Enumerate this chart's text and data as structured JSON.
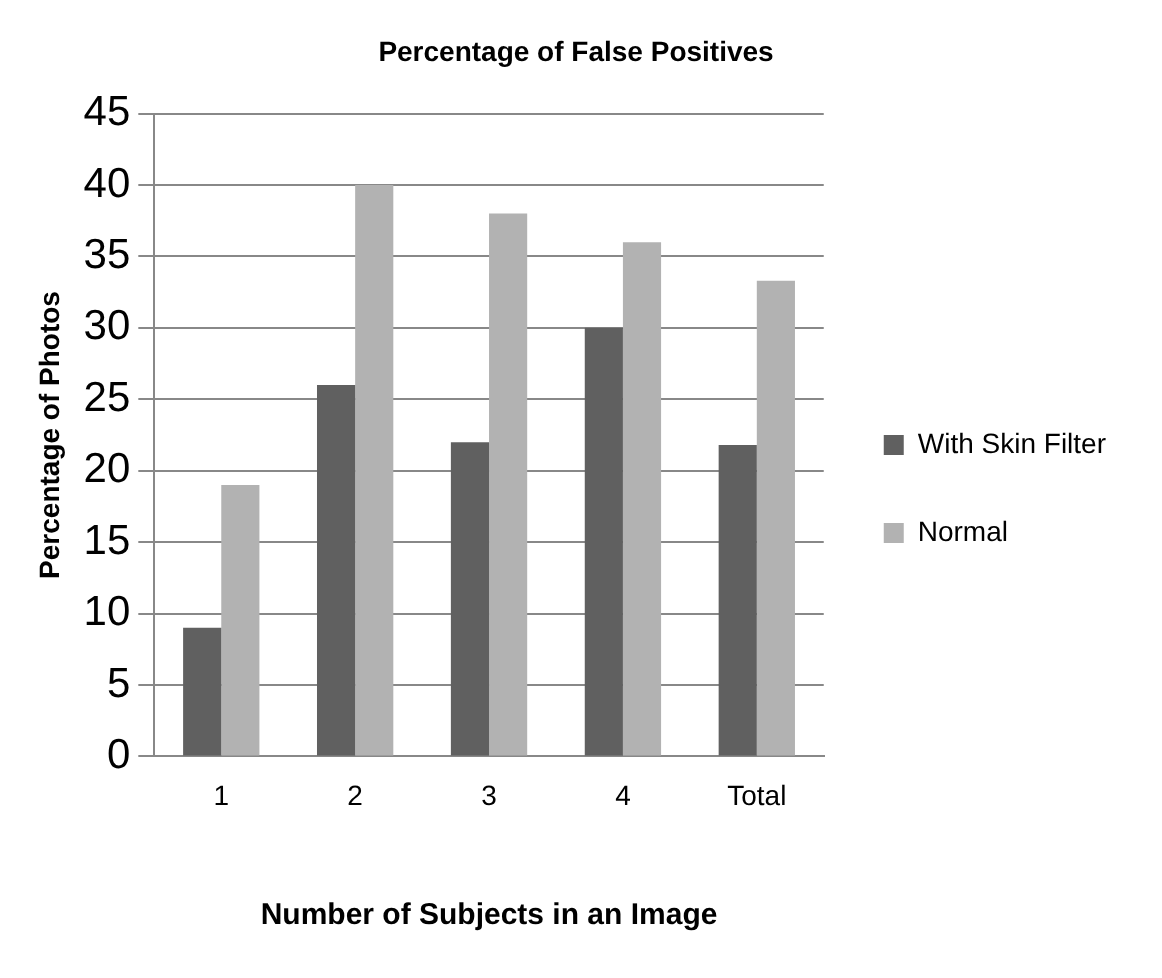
{
  "chart_data": {
    "type": "bar",
    "title": "Percentage of False Positives",
    "xlabel": "Number of Subjects in an Image",
    "ylabel": "Percentage of Photos",
    "categories": [
      "1",
      "2",
      "3",
      "4",
      "Total"
    ],
    "series": [
      {
        "name": "With Skin Filter",
        "color": "#606060",
        "values": [
          9,
          26,
          22,
          30,
          21.8
        ]
      },
      {
        "name": "Normal",
        "color": "#b2b2b2",
        "values": [
          19,
          40,
          38,
          36,
          33.3
        ]
      }
    ],
    "ylim": [
      0,
      45
    ],
    "yticks": [
      0,
      5,
      10,
      15,
      20,
      25,
      30,
      35,
      40,
      45
    ],
    "grid": "y",
    "legend": "right"
  }
}
